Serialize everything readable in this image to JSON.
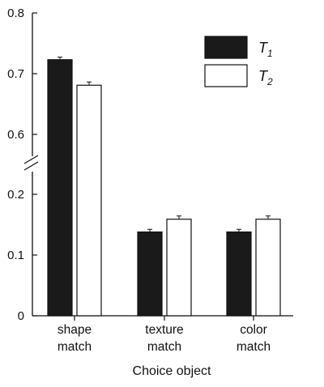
{
  "chart_data": {
    "type": "bar",
    "title": "",
    "xlabel": "Choice object",
    "ylabel": "",
    "categories": [
      [
        "shape",
        "match"
      ],
      [
        "texture",
        "match"
      ],
      [
        "color",
        "match"
      ]
    ],
    "series": [
      {
        "name": "T",
        "subscript": "1",
        "color": "#1a1a1a",
        "values": [
          0.723,
          0.138,
          0.138
        ],
        "errors": [
          0.003,
          0.003,
          0.003
        ]
      },
      {
        "name": "T",
        "subscript": "2",
        "color": "#ffffff",
        "values": [
          0.681,
          0.159,
          0.159
        ],
        "errors": [
          0.004,
          0.004,
          0.004
        ]
      }
    ],
    "axis_break": {
      "lower_range": [
        0,
        0.2
      ],
      "upper_range": [
        0.6,
        0.8
      ]
    },
    "yticks": [
      {
        "value": 0,
        "label": "0"
      },
      {
        "value": 0.1,
        "label": "0.1"
      },
      {
        "value": 0.2,
        "label": "0.2"
      },
      {
        "value": 0.6,
        "label": "0.6"
      },
      {
        "value": 0.7,
        "label": "0.7"
      },
      {
        "value": 0.8,
        "label": "0.8"
      }
    ],
    "legend_position": "top-right",
    "grid": false
  }
}
